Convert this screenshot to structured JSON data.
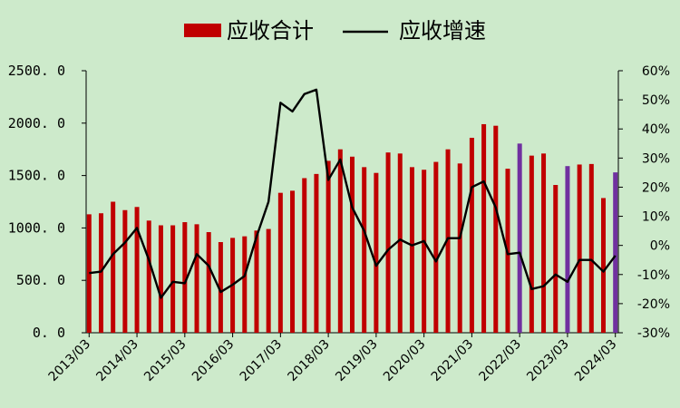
{
  "chart_data": {
    "type": "bar",
    "legend": {
      "position": "top",
      "items": [
        "应收合计",
        "应收增速"
      ]
    },
    "x": [
      "2013/03",
      "2013/06",
      "2013/09",
      "2013/12",
      "2014/03",
      "2014/06",
      "2014/09",
      "2014/12",
      "2015/03",
      "2015/06",
      "2015/09",
      "2015/12",
      "2016/03",
      "2016/06",
      "2016/09",
      "2016/12",
      "2017/03",
      "2017/06",
      "2017/09",
      "2017/12",
      "2018/03",
      "2018/06",
      "2018/09",
      "2018/12",
      "2019/03",
      "2019/06",
      "2019/09",
      "2019/12",
      "2020/03",
      "2020/06",
      "2020/09",
      "2020/12",
      "2021/03",
      "2021/06",
      "2021/09",
      "2021/12",
      "2022/03",
      "2022/06",
      "2022/09",
      "2022/12",
      "2023/03",
      "2023/06",
      "2023/09",
      "2023/12",
      "2024/03"
    ],
    "x_tick_labels": [
      "2013/03",
      "2014/03",
      "2015/03",
      "2016/03",
      "2017/03",
      "2018/03",
      "2019/03",
      "2020/03",
      "2021/03",
      "2022/03",
      "2023/03",
      "2024/03"
    ],
    "series": [
      {
        "name": "应收合计",
        "type": "bar",
        "axis": "left",
        "color": "#c00000",
        "highlight_color": "#7030a0",
        "highlight_indices": [
          36,
          40,
          44
        ],
        "values": [
          1130,
          1140,
          1250,
          1170,
          1200,
          1070,
          1025,
          1025,
          1055,
          1035,
          960,
          865,
          905,
          920,
          975,
          990,
          1335,
          1355,
          1475,
          1515,
          1640,
          1750,
          1680,
          1580,
          1525,
          1720,
          1710,
          1580,
          1555,
          1630,
          1750,
          1615,
          1860,
          1990,
          1975,
          1565,
          1805,
          1690,
          1710,
          1410,
          1590,
          1605,
          1610,
          1285,
          1530
        ]
      },
      {
        "name": "应收增速",
        "type": "line",
        "axis": "right",
        "color": "#000000",
        "values": [
          -9.5,
          -9,
          -3,
          1,
          6,
          -5,
          -18,
          -12.5,
          -13,
          -3,
          -7,
          -16,
          -13.5,
          -10.5,
          3,
          15,
          49,
          46,
          52,
          53.5,
          22.5,
          29.5,
          13,
          5,
          -7,
          -1.5,
          2,
          0,
          1.5,
          -5.5,
          2.5,
          2.5,
          20,
          22,
          13,
          -3,
          -2.5,
          -15,
          -14,
          -10,
          -12.5,
          -5,
          -5,
          -9,
          -3.5
        ]
      }
    ],
    "y_left": {
      "min": 0,
      "max": 2500,
      "tick_labels": [
        "0. 0",
        "500. 0",
        "1000. 0",
        "1500. 0",
        "2000. 0",
        "2500. 0"
      ]
    },
    "y_right": {
      "min": -30,
      "max": 60,
      "tick_labels": [
        "-30%",
        "-20%",
        "-10%",
        "0%",
        "10%",
        "20%",
        "30%",
        "40%",
        "50%",
        "60%"
      ]
    },
    "grid": false
  }
}
